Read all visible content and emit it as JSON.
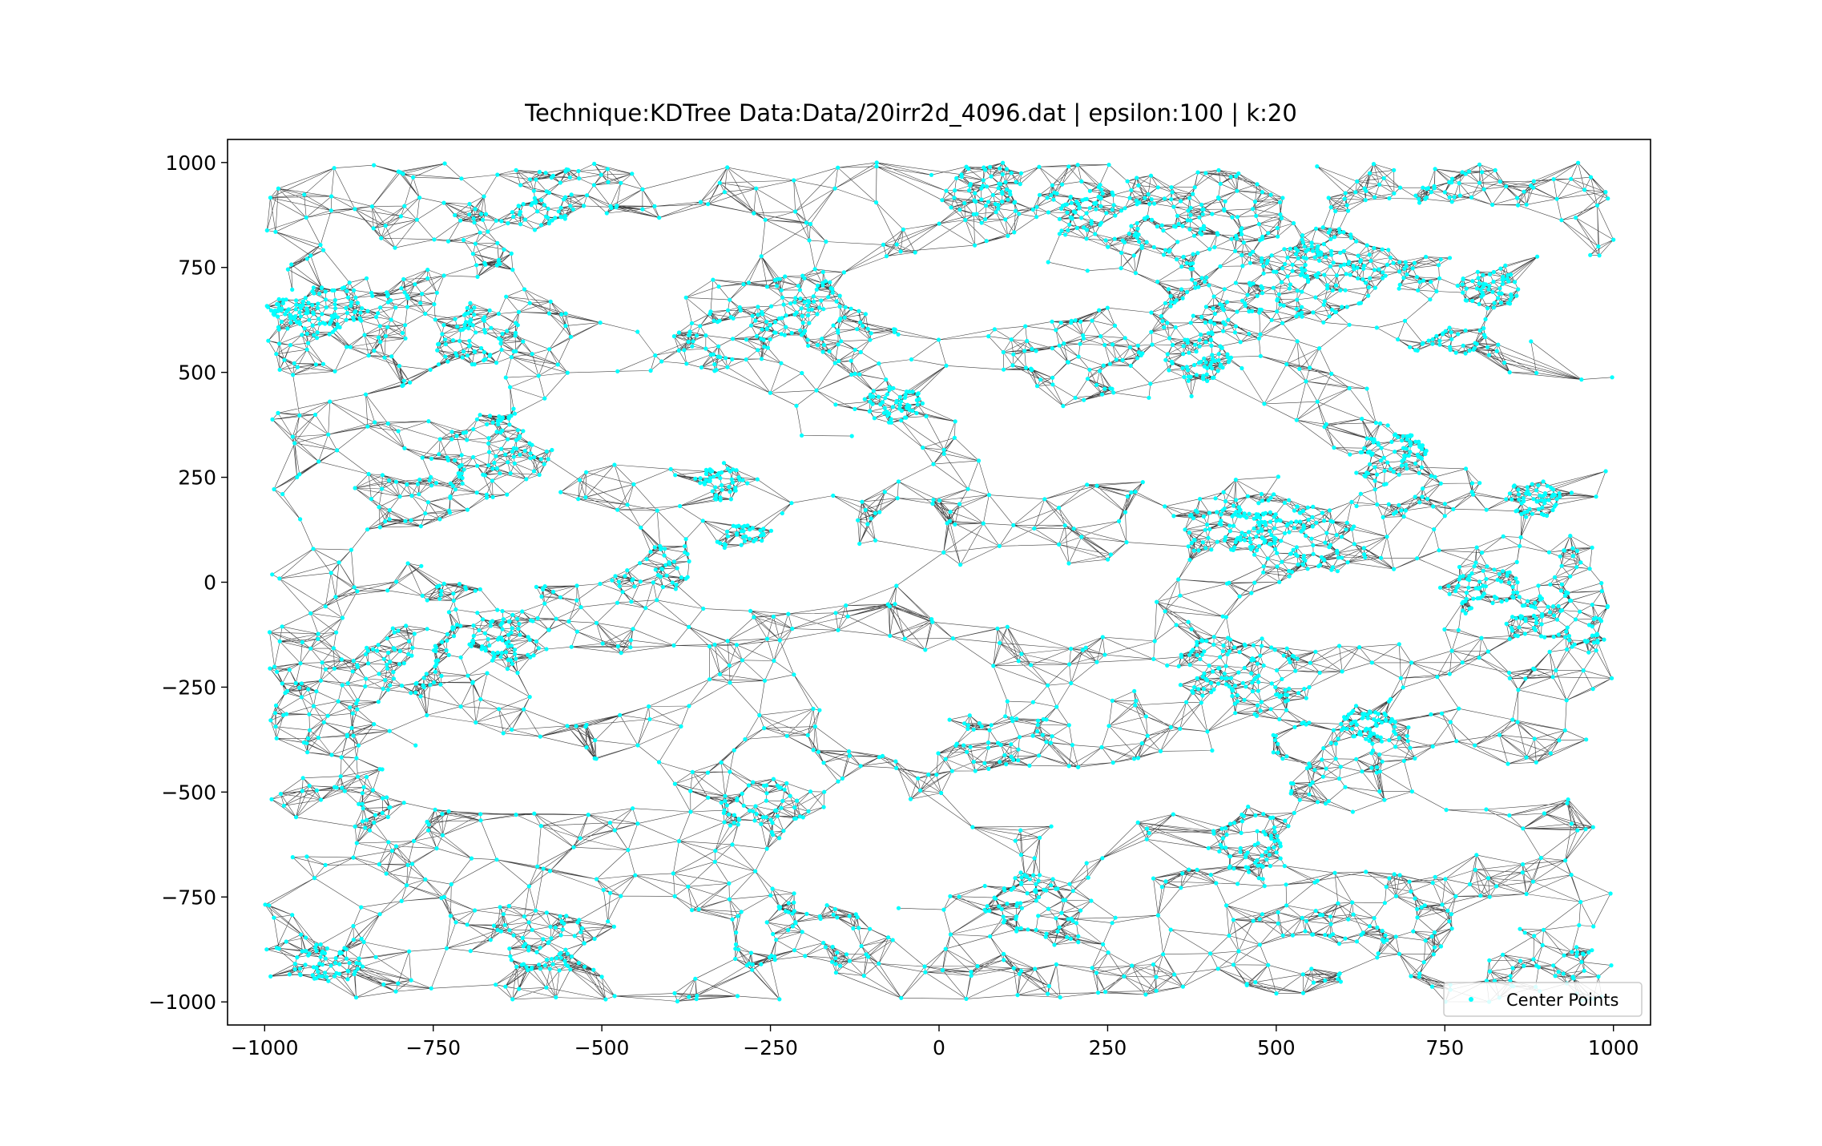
{
  "chart_data": {
    "type": "scatter",
    "title": "Technique:KDTree Data:Data/20irr2d_4096.dat | epsilon:100 | k:20",
    "xlabel": "",
    "ylabel": "",
    "xlim": [
      -1055,
      1055
    ],
    "ylim": [
      -1055,
      1055
    ],
    "x_ticks": [
      -1000,
      -750,
      -500,
      -250,
      0,
      250,
      500,
      750,
      1000
    ],
    "y_ticks": [
      -1000,
      -750,
      -500,
      -250,
      0,
      250,
      500,
      750,
      1000
    ],
    "x_tick_labels": [
      "−1000",
      "−750",
      "−500",
      "−250",
      "0",
      "250",
      "500",
      "750",
      "1000"
    ],
    "y_tick_labels": [
      "−1000",
      "−750",
      "−500",
      "−250",
      "0",
      "250",
      "500",
      "750",
      "1000"
    ],
    "grid": false,
    "legend": {
      "position": "lower-right",
      "entries": [
        "Center Points"
      ]
    },
    "series": [
      {
        "name": "Center Points",
        "kind": "points",
        "color": "#00ffff",
        "n_points": 4096,
        "x_range": [
          -1000,
          1000
        ],
        "y_range": [
          -1000,
          1000
        ]
      },
      {
        "kind": "edges",
        "color": "#000000",
        "description_of_marks": "k-nearest-neighbour graph edges (k=20) between center points"
      }
    ],
    "holes_approx": [
      {
        "x": 30,
        "y": 700,
        "rx": 180,
        "ry": 90
      },
      {
        "x": -480,
        "y": 770,
        "rx": 150,
        "ry": 100
      },
      {
        "x": 760,
        "y": 840,
        "rx": 150,
        "ry": 60
      },
      {
        "x": 950,
        "y": 660,
        "rx": 90,
        "ry": 100
      },
      {
        "x": -420,
        "y": 380,
        "rx": 200,
        "ry": 100
      },
      {
        "x": 320,
        "y": 340,
        "rx": 240,
        "ry": 90
      },
      {
        "x": -160,
        "y": 290,
        "rx": 120,
        "ry": 60
      },
      {
        "x": 860,
        "y": 380,
        "rx": 160,
        "ry": 120
      },
      {
        "x": 720,
        "y": 500,
        "rx": 120,
        "ry": 50
      },
      {
        "x": -600,
        "y": 90,
        "rx": 170,
        "ry": 100
      },
      {
        "x": -220,
        "y": 20,
        "rx": 140,
        "ry": 80
      },
      {
        "x": 90,
        "y": -30,
        "rx": 140,
        "ry": 70
      },
      {
        "x": 610,
        "y": -60,
        "rx": 160,
        "ry": 80
      },
      {
        "x": -60,
        "y": -250,
        "rx": 160,
        "ry": 80
      },
      {
        "x": -480,
        "y": -220,
        "rx": 110,
        "ry": 50
      },
      {
        "x": -660,
        "y": -470,
        "rx": 170,
        "ry": 80
      },
      {
        "x": 140,
        "y": -490,
        "rx": 140,
        "ry": 50
      },
      {
        "x": 390,
        "y": -470,
        "rx": 130,
        "ry": 60
      },
      {
        "x": -80,
        "y": -660,
        "rx": 180,
        "ry": 100
      },
      {
        "x": -430,
        "y": -890,
        "rx": 80,
        "ry": 60
      },
      {
        "x": 620,
        "y": -620,
        "rx": 110,
        "ry": 70
      },
      {
        "x": 960,
        "y": -450,
        "rx": 40,
        "ry": 60
      }
    ]
  }
}
